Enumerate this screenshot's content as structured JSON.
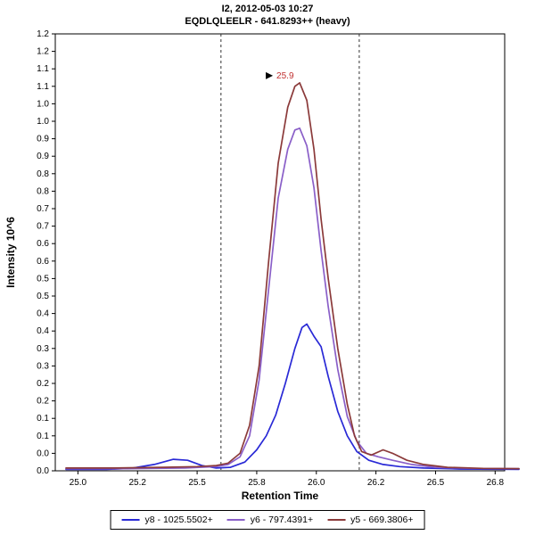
{
  "chart_data": {
    "type": "line",
    "title": "I2, 2012-05-03 10:27",
    "subtitle": "EQDLQLEELR - 641.8293++ (heavy)",
    "x_axis": {
      "title": "Retention Time",
      "min": 24.905,
      "max": 26.79,
      "ticks": [
        {
          "v": 25.0,
          "label": "25.0"
        },
        {
          "v": 25.25,
          "label": "25.2"
        },
        {
          "v": 25.5,
          "label": "25.5"
        },
        {
          "v": 25.75,
          "label": "25.8"
        },
        {
          "v": 26.0,
          "label": "26.0"
        },
        {
          "v": 26.25,
          "label": "26.2"
        },
        {
          "v": 26.5,
          "label": "26.5"
        },
        {
          "v": 26.75,
          "label": "26.8"
        }
      ]
    },
    "y_axis": {
      "title": "Intensity 10^6",
      "min": 0,
      "max": 1.25,
      "tick_step": 0.05,
      "labels_top_to_bottom": [
        "1.2",
        "1.2",
        "1.1",
        "1.1",
        "1.0",
        "1.0",
        "0.9",
        "0.9",
        "0.8",
        "0.8",
        "0.7",
        "0.7",
        "0.6",
        "0.6",
        "0.5",
        "0.5",
        "0.4",
        "0.4",
        "0.3",
        "0.3",
        "0.2",
        "0.2",
        "0.1",
        "0.1",
        "0.0",
        "0.0"
      ]
    },
    "integration_boundaries": [
      25.6,
      26.18
    ],
    "peak_annotation": {
      "text": "25.9",
      "x": 25.93,
      "y": 1.11,
      "color": "#c03030"
    },
    "series": [
      {
        "fragment": "y8",
        "name": "y8 - 1025.5502+",
        "color": "#2929d6",
        "points": [
          [
            24.95,
            0.004
          ],
          [
            25.12,
            0.004
          ],
          [
            25.22,
            0.007
          ],
          [
            25.32,
            0.018
          ],
          [
            25.4,
            0.033
          ],
          [
            25.46,
            0.03
          ],
          [
            25.52,
            0.015
          ],
          [
            25.58,
            0.008
          ],
          [
            25.64,
            0.01
          ],
          [
            25.7,
            0.025
          ],
          [
            25.75,
            0.06
          ],
          [
            25.79,
            0.1
          ],
          [
            25.83,
            0.16
          ],
          [
            25.87,
            0.25
          ],
          [
            25.91,
            0.35
          ],
          [
            25.94,
            0.41
          ],
          [
            25.96,
            0.42
          ],
          [
            25.99,
            0.385
          ],
          [
            26.02,
            0.355
          ],
          [
            26.05,
            0.27
          ],
          [
            26.09,
            0.17
          ],
          [
            26.13,
            0.1
          ],
          [
            26.17,
            0.055
          ],
          [
            26.22,
            0.03
          ],
          [
            26.28,
            0.018
          ],
          [
            26.35,
            0.012
          ],
          [
            26.45,
            0.008
          ],
          [
            26.6,
            0.005
          ],
          [
            26.85,
            0.004
          ]
        ]
      },
      {
        "fragment": "y6",
        "name": "y6 - 797.4391+",
        "color": "#8a5fc8",
        "points": [
          [
            24.95,
            0.006
          ],
          [
            25.2,
            0.006
          ],
          [
            25.45,
            0.008
          ],
          [
            25.58,
            0.012
          ],
          [
            25.63,
            0.018
          ],
          [
            25.68,
            0.04
          ],
          [
            25.72,
            0.1
          ],
          [
            25.76,
            0.26
          ],
          [
            25.8,
            0.52
          ],
          [
            25.84,
            0.78
          ],
          [
            25.88,
            0.92
          ],
          [
            25.91,
            0.975
          ],
          [
            25.93,
            0.98
          ],
          [
            25.96,
            0.93
          ],
          [
            25.99,
            0.81
          ],
          [
            26.02,
            0.63
          ],
          [
            26.05,
            0.47
          ],
          [
            26.09,
            0.29
          ],
          [
            26.13,
            0.155
          ],
          [
            26.17,
            0.085
          ],
          [
            26.21,
            0.05
          ],
          [
            26.26,
            0.04
          ],
          [
            26.32,
            0.03
          ],
          [
            26.4,
            0.018
          ],
          [
            26.5,
            0.01
          ],
          [
            26.65,
            0.007
          ],
          [
            26.85,
            0.006
          ]
        ]
      },
      {
        "fragment": "y5",
        "name": "y5 - 669.3806+",
        "color": "#8b3a3a",
        "points": [
          [
            24.95,
            0.008
          ],
          [
            25.15,
            0.008
          ],
          [
            25.35,
            0.01
          ],
          [
            25.5,
            0.012
          ],
          [
            25.58,
            0.015
          ],
          [
            25.63,
            0.022
          ],
          [
            25.68,
            0.05
          ],
          [
            25.72,
            0.13
          ],
          [
            25.76,
            0.3
          ],
          [
            25.8,
            0.6
          ],
          [
            25.84,
            0.88
          ],
          [
            25.88,
            1.04
          ],
          [
            25.91,
            1.1
          ],
          [
            25.93,
            1.11
          ],
          [
            25.96,
            1.06
          ],
          [
            25.99,
            0.92
          ],
          [
            26.02,
            0.72
          ],
          [
            26.05,
            0.55
          ],
          [
            26.09,
            0.35
          ],
          [
            26.13,
            0.19
          ],
          [
            26.16,
            0.1
          ],
          [
            26.19,
            0.055
          ],
          [
            26.23,
            0.045
          ],
          [
            26.28,
            0.06
          ],
          [
            26.32,
            0.05
          ],
          [
            26.38,
            0.03
          ],
          [
            26.45,
            0.018
          ],
          [
            26.55,
            0.01
          ],
          [
            26.7,
            0.007
          ],
          [
            26.85,
            0.006
          ]
        ]
      }
    ]
  }
}
